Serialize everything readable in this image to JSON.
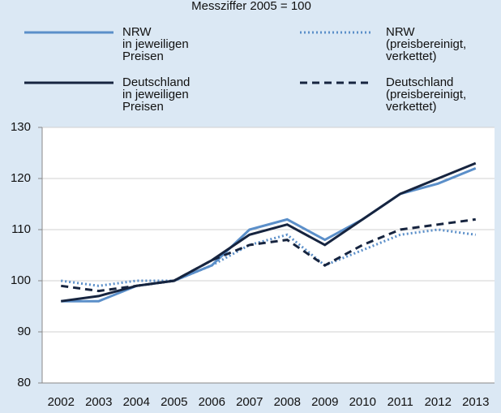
{
  "chart_data": {
    "type": "line",
    "title": "Messziffer 2005 = 100",
    "categories": [
      "2002",
      "2003",
      "2004",
      "2005",
      "2006",
      "2007",
      "2008",
      "2009",
      "2010",
      "2011",
      "2012",
      "2013"
    ],
    "series": [
      {
        "name": "NRW\nin jeweiligen\nPreisen",
        "color": "#5b8fc9",
        "style": "solid",
        "values": [
          96,
          96,
          99,
          100,
          103,
          110,
          112,
          108,
          112,
          117,
          119,
          122
        ]
      },
      {
        "name": "NRW\n(preisbereinigt,\nverkettet)",
        "color": "#5b8fc9",
        "style": "dotted",
        "values": [
          100,
          99,
          100,
          100,
          103,
          107,
          109,
          103,
          106,
          109,
          110,
          109
        ]
      },
      {
        "name": "Deutschland\nin jeweiligen\nPreisen",
        "color": "#16243f",
        "style": "solid",
        "values": [
          96,
          97,
          99,
          100,
          104,
          109,
          111,
          107,
          112,
          117,
          120,
          123
        ]
      },
      {
        "name": "Deutschland\n(preisbereinigt,\nverkettet)",
        "color": "#16243f",
        "style": "dashed",
        "values": [
          99,
          98,
          99,
          100,
          104,
          107,
          108,
          103,
          107,
          110,
          111,
          112
        ]
      }
    ],
    "ylim": [
      80,
      130
    ],
    "yticks": [
      80,
      90,
      100,
      110,
      120,
      130
    ],
    "grid": true
  }
}
